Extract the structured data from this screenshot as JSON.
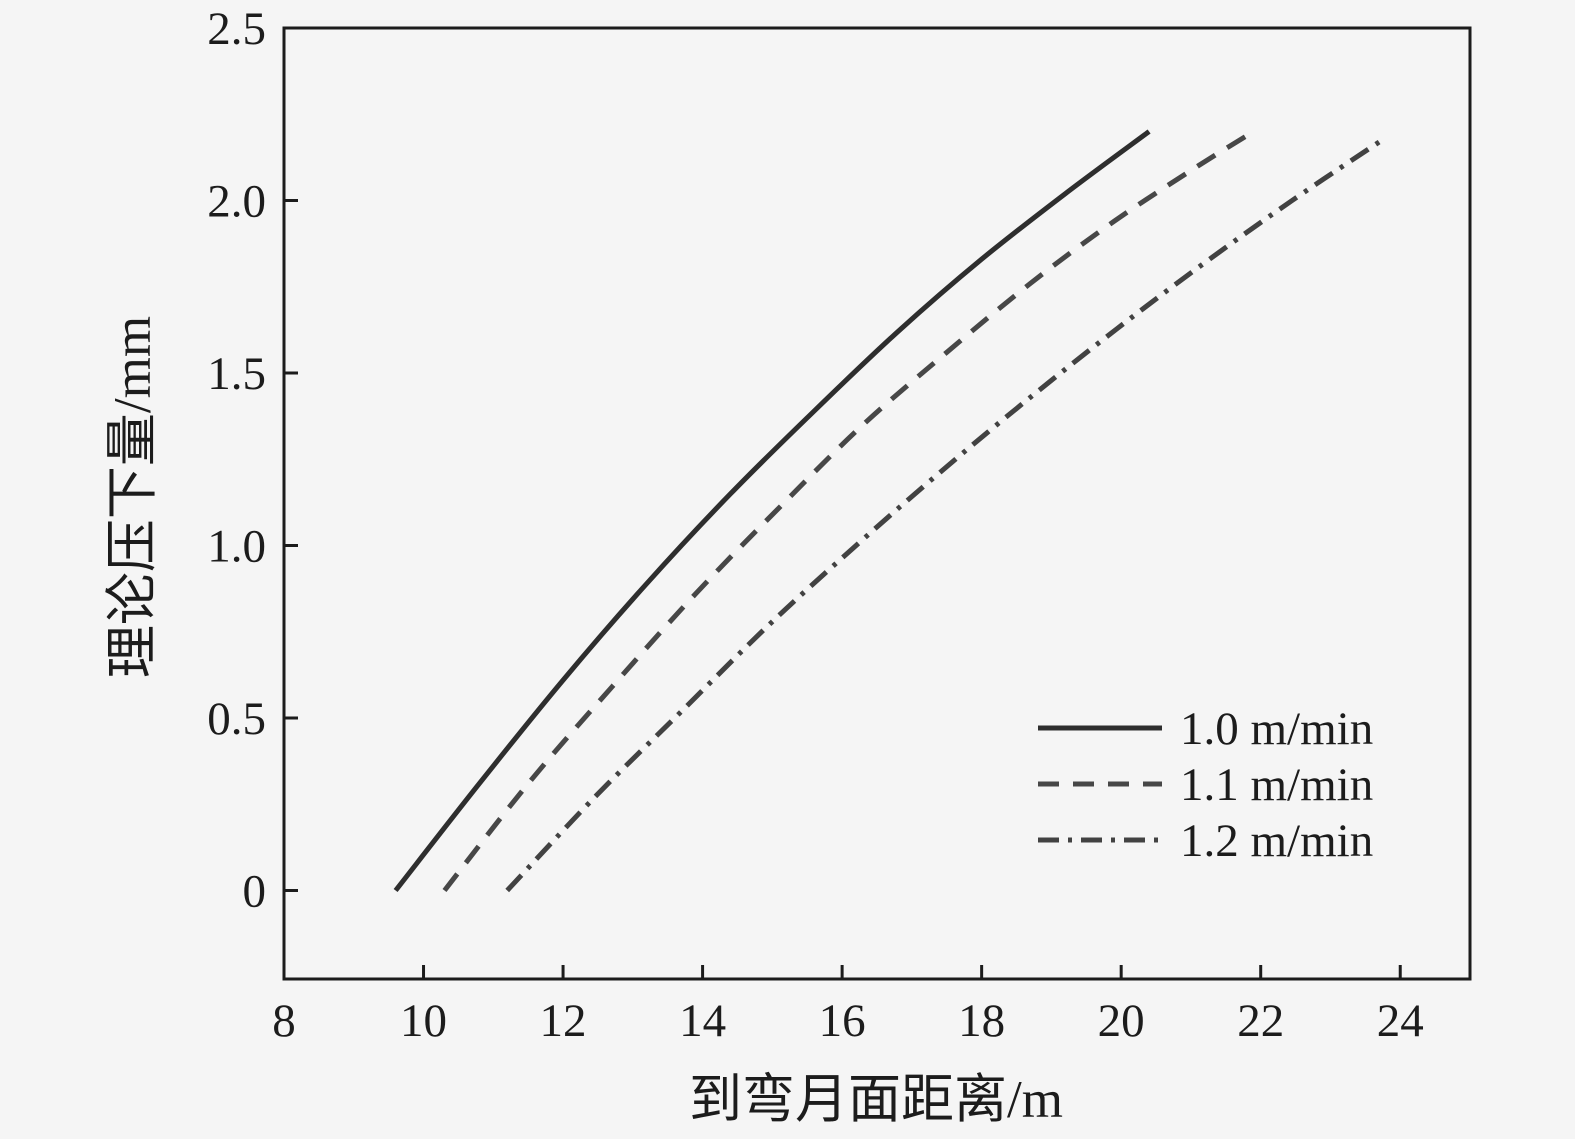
{
  "chart_data": {
    "type": "line",
    "title": "",
    "xlabel": "到弯月面距离/m",
    "ylabel": "理论压下量/mm",
    "xlim": [
      8,
      25.0
    ],
    "ylim": [
      -0.2565,
      2.5
    ],
    "grid": false,
    "x_ticks": [
      8,
      10,
      12,
      14,
      16,
      18,
      20,
      22,
      24
    ],
    "x_tick_labels": [
      "8",
      "10",
      "12",
      "14",
      "16",
      "18",
      "20",
      "22",
      "24"
    ],
    "y_ticks": [
      0,
      0.5,
      1.0,
      1.5,
      2.0,
      2.5
    ],
    "y_tick_labels": [
      "0",
      "0.5",
      "1.0",
      "1.5",
      "2.0",
      "2.5"
    ],
    "legend_position": "lower-right-inside",
    "frame_color": "#1c1c1c",
    "background_color": "#f5f5f5",
    "series": [
      {
        "name": "1.0 m/min",
        "style": "solid",
        "color": "#2e2e2e",
        "points": [
          [
            9.6,
            0.0
          ],
          [
            10.8,
            0.31
          ],
          [
            12.0,
            0.61
          ],
          [
            13.2,
            0.89
          ],
          [
            14.4,
            1.15
          ],
          [
            15.6,
            1.39
          ],
          [
            16.8,
            1.62
          ],
          [
            18.0,
            1.83
          ],
          [
            19.2,
            2.02
          ],
          [
            20.4,
            2.2
          ]
        ]
      },
      {
        "name": "1.1 m/min",
        "style": "dashed",
        "color": "#474747",
        "points": [
          [
            10.3,
            0.0
          ],
          [
            11.5,
            0.31
          ],
          [
            12.7,
            0.59
          ],
          [
            13.9,
            0.86
          ],
          [
            15.1,
            1.11
          ],
          [
            16.3,
            1.35
          ],
          [
            17.5,
            1.56
          ],
          [
            18.7,
            1.76
          ],
          [
            19.9,
            1.94
          ],
          [
            21.1,
            2.1
          ],
          [
            21.9,
            2.2
          ]
        ]
      },
      {
        "name": "1.2 m/min",
        "style": "dashdot",
        "color": "#424242",
        "points": [
          [
            11.2,
            0.0
          ],
          [
            12.45,
            0.27
          ],
          [
            13.7,
            0.52
          ],
          [
            14.95,
            0.77
          ],
          [
            16.2,
            1.0
          ],
          [
            17.45,
            1.22
          ],
          [
            18.7,
            1.43
          ],
          [
            19.95,
            1.63
          ],
          [
            21.2,
            1.82
          ],
          [
            22.45,
            2.0
          ],
          [
            23.7,
            2.17
          ]
        ]
      }
    ]
  }
}
